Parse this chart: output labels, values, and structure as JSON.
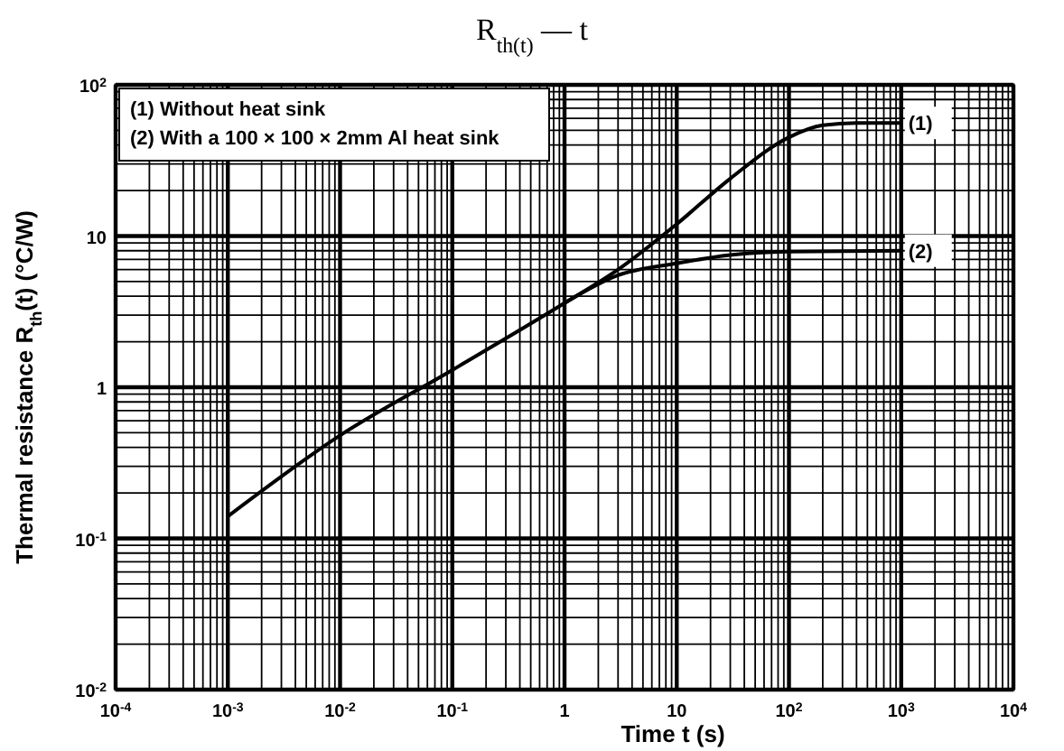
{
  "chart_data": {
    "type": "line",
    "title": "R$_{th(t)}$ — t",
    "xlabel": "Time   t   (s)",
    "ylabel": "Thermal resistance  R$_{th}$(t)   (°C/W)",
    "log": "xy",
    "grid": true,
    "line_style": "solid",
    "xlim": [
      0.0001,
      10000
    ],
    "ylim": [
      0.01,
      100
    ],
    "xticks": [
      {
        "value": 0.0001,
        "label": "10$^{-4}$"
      },
      {
        "value": 0.001,
        "label": "10$^{-3}$"
      },
      {
        "value": 0.01,
        "label": "10$^{-2}$"
      },
      {
        "value": 0.1,
        "label": "10$^{-1}$"
      },
      1,
      10,
      {
        "value": 100,
        "label": "10$^{2}$"
      },
      {
        "value": 1000,
        "label": "10$^{3}$"
      },
      {
        "value": 10000,
        "label": "10$^{4}$"
      }
    ],
    "yticks": [
      {
        "value": 0.01,
        "label": "10$^{-2}$"
      },
      {
        "value": 0.1,
        "label": "10$^{-1}$"
      },
      1,
      10,
      {
        "value": 100,
        "label": "10$^{2}$"
      }
    ],
    "series": [
      {
        "name": "(1)",
        "color": "#000000",
        "x": [
          0.001,
          0.01,
          0.1,
          1,
          3,
          10,
          30,
          100,
          200,
          400,
          1000
        ],
        "values": [
          0.14,
          0.48,
          1.3,
          3.6,
          6,
          12,
          24,
          45,
          54,
          56,
          56
        ]
      },
      {
        "name": "(2)",
        "color": "#000000",
        "x": [
          1,
          3,
          10,
          30,
          100,
          1000
        ],
        "values": [
          3.6,
          5.5,
          6.6,
          7.5,
          7.9,
          8
        ]
      }
    ],
    "annotations": [
      "(1) Without heat sink",
      "(2) With a 100 × 100 × 2mm Al heat sink"
    ]
  }
}
